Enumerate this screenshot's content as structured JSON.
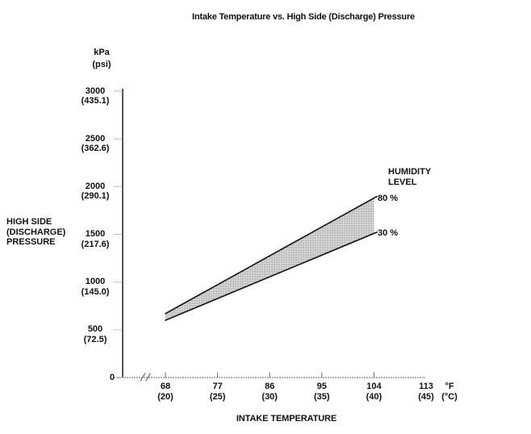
{
  "title": "Intake Temperature vs. High Side (Discharge) Pressure",
  "chart_data": {
    "type": "area",
    "title": "Intake Temperature vs. High Side (Discharge) Pressure",
    "x_axis": {
      "title": "INTAKE TEMPERATURE",
      "unit_line1": "°F",
      "unit_line2": "(°C)",
      "range_f": [
        68,
        113
      ],
      "axis_break_before_first_tick": true,
      "ticks": [
        {
          "value": 68,
          "label_f": "68",
          "label_c": "(20)"
        },
        {
          "value": 77,
          "label_f": "77",
          "label_c": "(25)"
        },
        {
          "value": 86,
          "label_f": "86",
          "label_c": "(30)"
        },
        {
          "value": 95,
          "label_f": "95",
          "label_c": "(35)"
        },
        {
          "value": 104,
          "label_f": "104",
          "label_c": "(40)"
        },
        {
          "value": 113,
          "label_f": "113",
          "label_c": "(45)"
        }
      ]
    },
    "y_axis": {
      "title_lines": [
        "HIGH SIDE",
        "(DISCHARGE)",
        "PRESSURE"
      ],
      "unit_line1": "kPa",
      "unit_line2": "(psi)",
      "range_kpa": [
        0,
        3000
      ],
      "ticks": [
        {
          "value": 3000,
          "label_kpa": "3000",
          "label_psi": "(435.1)"
        },
        {
          "value": 2500,
          "label_kpa": "2500",
          "label_psi": "(362.6)"
        },
        {
          "value": 2000,
          "label_kpa": "2000",
          "label_psi": "(290.1)"
        },
        {
          "value": 1500,
          "label_kpa": "1500",
          "label_psi": "(217.6)"
        },
        {
          "value": 1000,
          "label_kpa": "1000",
          "label_psi": "(145.0)"
        },
        {
          "value": 500,
          "label_kpa": "500",
          "label_psi": "(72.5)"
        },
        {
          "value": 0,
          "label_kpa": "0",
          "label_psi": ""
        }
      ]
    },
    "legend": {
      "line1": "HUMIDITY",
      "line2": "LEVEL"
    },
    "series": [
      {
        "name": "80 %",
        "humidity_percent": 80,
        "points_f_kpa": [
          [
            68,
            670
          ],
          [
            104,
            1880
          ]
        ]
      },
      {
        "name": "30 %",
        "humidity_percent": 30,
        "points_f_kpa": [
          [
            68,
            600
          ],
          [
            104,
            1510
          ]
        ]
      }
    ],
    "band_fill_color": "#d6d6d6",
    "band_dot_color": "#8f8f8f",
    "line_color": "#1a1a1a",
    "grid": false
  }
}
